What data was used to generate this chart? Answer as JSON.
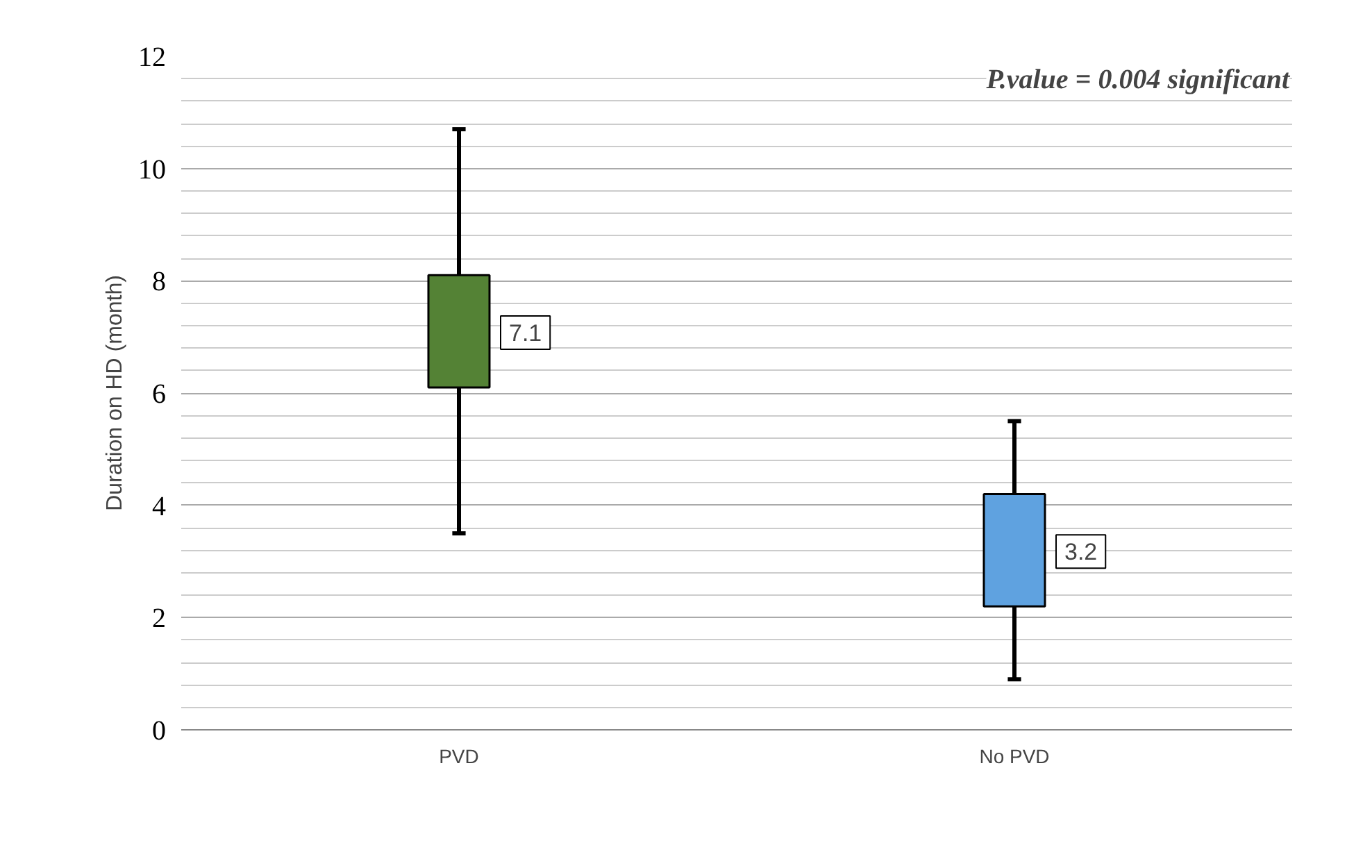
{
  "chart_data": {
    "type": "bar",
    "ylabel": "Duration on HD (month)",
    "categories": [
      "PVD",
      "No PVD"
    ],
    "base": [
      6.1,
      2.2
    ],
    "values": [
      2.0,
      2.0
    ],
    "errors": [
      [
        3.5,
        10.7
      ],
      [
        0.9,
        5.5
      ]
    ],
    "colors": [
      "#548235",
      "#5fa2e0"
    ],
    "ylim": [
      0,
      12
    ],
    "yticks": [
      0,
      2,
      4,
      6,
      8,
      10,
      12
    ],
    "grid": "y",
    "annotations": [
      "7.1",
      "3.2",
      "P.value = 0.004 significant"
    ]
  }
}
